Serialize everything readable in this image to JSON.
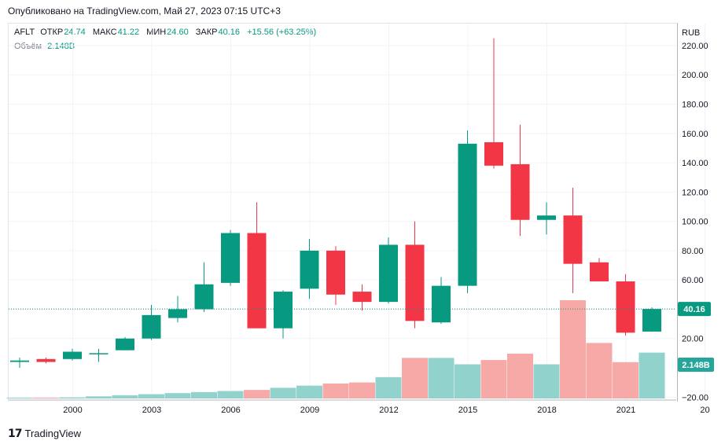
{
  "published": "Опубликовано на TradingView.com, Май 27, 2023 07:15 UTC+3",
  "legend": {
    "symbol": "AFLT",
    "open_label": "ОТКР",
    "open": "24.74",
    "high_label": "МАКС",
    "high": "41.22",
    "low_label": "МИН",
    "low": "24.60",
    "close_label": "ЗАКР",
    "close": "40.16",
    "change": "+15.56 (+63.25%)",
    "volume_label": "Объём",
    "volume": "2.148B"
  },
  "footer": {
    "logo": "TradingView"
  },
  "colors": {
    "up": "#089981",
    "down": "#f23645",
    "up_volume": "#92d2cc",
    "down_volume": "#f7a9a7",
    "grid": "#f0f3fa"
  },
  "chart_data": {
    "type": "candlestick",
    "currency": "RUB",
    "ylim": [
      -22,
      235
    ],
    "y_ticks": [
      -20,
      20,
      40,
      60,
      80,
      100,
      120,
      140,
      160,
      180,
      200,
      220
    ],
    "x_ticks": [
      "2000",
      "2003",
      "2006",
      "2009",
      "2012",
      "2015",
      "2018",
      "2021",
      "20"
    ],
    "last_price": "40.16",
    "last_volume": "2.148B",
    "candles": [
      {
        "year": 1999,
        "o": 4,
        "h": 7,
        "l": 0,
        "c": 5
      },
      {
        "year": 2000,
        "o": 6,
        "h": 7,
        "l": 3,
        "c": 4
      },
      {
        "year": 2001,
        "o": 6,
        "h": 13,
        "l": 5,
        "c": 11
      },
      {
        "year": 2002,
        "o": 10,
        "h": 13,
        "l": 4,
        "c": 10
      },
      {
        "year": 2003,
        "o": 12,
        "h": 21,
        "l": 12,
        "c": 20
      },
      {
        "year": 2004,
        "o": 20,
        "h": 43,
        "l": 19,
        "c": 36
      },
      {
        "year": 2005,
        "o": 34,
        "h": 49,
        "l": 31,
        "c": 40
      },
      {
        "year": 2006,
        "o": 40,
        "h": 72,
        "l": 38,
        "c": 57
      },
      {
        "year": 2007,
        "o": 58,
        "h": 94,
        "l": 56,
        "c": 92
      },
      {
        "year": 2008,
        "o": 92,
        "h": 113,
        "l": 27,
        "c": 27
      },
      {
        "year": 2009,
        "o": 27,
        "h": 53,
        "l": 20,
        "c": 52
      },
      {
        "year": 2010,
        "o": 54,
        "h": 88,
        "l": 47,
        "c": 80
      },
      {
        "year": 2011,
        "o": 80,
        "h": 83,
        "l": 43,
        "c": 50
      },
      {
        "year": 2012,
        "o": 52,
        "h": 57,
        "l": 39,
        "c": 45
      },
      {
        "year": 2013,
        "o": 45,
        "h": 89,
        "l": 44,
        "c": 84
      },
      {
        "year": 2014,
        "o": 84,
        "h": 100,
        "l": 27,
        "c": 32
      },
      {
        "year": 2015,
        "o": 31,
        "h": 62,
        "l": 30,
        "c": 56
      },
      {
        "year": 2016,
        "o": 56,
        "h": 162,
        "l": 51,
        "c": 153
      },
      {
        "year": 2017,
        "o": 154,
        "h": 225,
        "l": 136,
        "c": 138
      },
      {
        "year": 2018,
        "o": 139,
        "h": 166,
        "l": 90,
        "c": 101
      },
      {
        "year": 2019,
        "o": 101,
        "h": 113,
        "l": 91,
        "c": 104
      },
      {
        "year": 2020,
        "o": 104,
        "h": 123,
        "l": 51,
        "c": 71
      },
      {
        "year": 2021,
        "o": 72,
        "h": 75,
        "l": 59,
        "c": 59
      },
      {
        "year": 2022,
        "o": 59,
        "h": 64,
        "l": 22,
        "c": 24
      },
      {
        "year": 2023,
        "o": 24.74,
        "h": 41.22,
        "l": 24.6,
        "c": 40.16
      }
    ],
    "volume_max": 4.6,
    "volumes": [
      0.0,
      0.02,
      0.05,
      0.1,
      0.15,
      0.2,
      0.25,
      0.3,
      0.35,
      0.4,
      0.5,
      0.6,
      0.7,
      0.75,
      1.0,
      1.9,
      1.9,
      1.6,
      1.8,
      2.1,
      1.6,
      4.6,
      2.6,
      1.7,
      2.148
    ]
  }
}
